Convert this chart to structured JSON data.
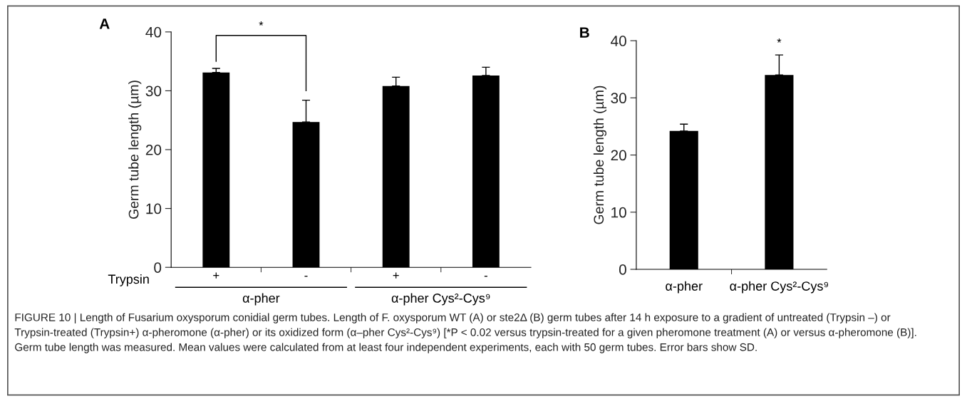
{
  "chart_data": [
    {
      "type": "bar",
      "title": "A",
      "ylabel": "Germ tube length (µm)",
      "categories": [
        "+",
        "-",
        "+",
        "-"
      ],
      "series": [
        {
          "color": "#000000",
          "values": [
            33.1,
            24.7,
            30.8,
            32.6
          ],
          "errors": [
            [
              33.1,
              33.8
            ],
            [
              24.7,
              28.4
            ],
            [
              30.8,
              32.3
            ],
            [
              32.6,
              34.0
            ]
          ]
        }
      ],
      "ylim": [
        0,
        40
      ],
      "yticks": [
        0,
        10,
        20,
        30,
        40
      ],
      "grid": false,
      "legend": false,
      "annotations": [
        "*",
        "Trypsin",
        "α-pher",
        "α-pher Cys²-Cys⁹",
        "FIGURE 10 | Length of Fusarium oxysporum conidial germ tubes. Length of F. oxysporum WT (A) or ste2Δ (B) germ tubes after 14 h exposure to a gradient of untreated (Trypsin –) or Trypsin-treated (Trypsin+) α-pheromone (α-pher) or its oxidized form (α–pher Cys²-Cys⁹) [*P < 0.02 versus trypsin-treated for a given pheromone treatment (A) or versus α-pheromone (B)]. Germ tube length was measured. Mean values were calculated from at least four independent experiments, each with 50 germ tubes. Error bars show SD."
      ]
    },
    {
      "type": "bar",
      "title": "B",
      "ylabel": "Germ tube length (µm)",
      "categories": [
        "α-pher",
        "α-pher Cys²-Cys⁹"
      ],
      "series": [
        {
          "color": "#000000",
          "values": [
            24.2,
            34.0
          ],
          "errors": [
            [
              24.2,
              25.4
            ],
            [
              34.0,
              37.5
            ]
          ]
        }
      ],
      "ylim": [
        0,
        40
      ],
      "yticks": [
        0,
        10,
        20,
        30,
        40
      ],
      "grid": false,
      "legend": false,
      "annotations": [
        "*"
      ]
    }
  ]
}
